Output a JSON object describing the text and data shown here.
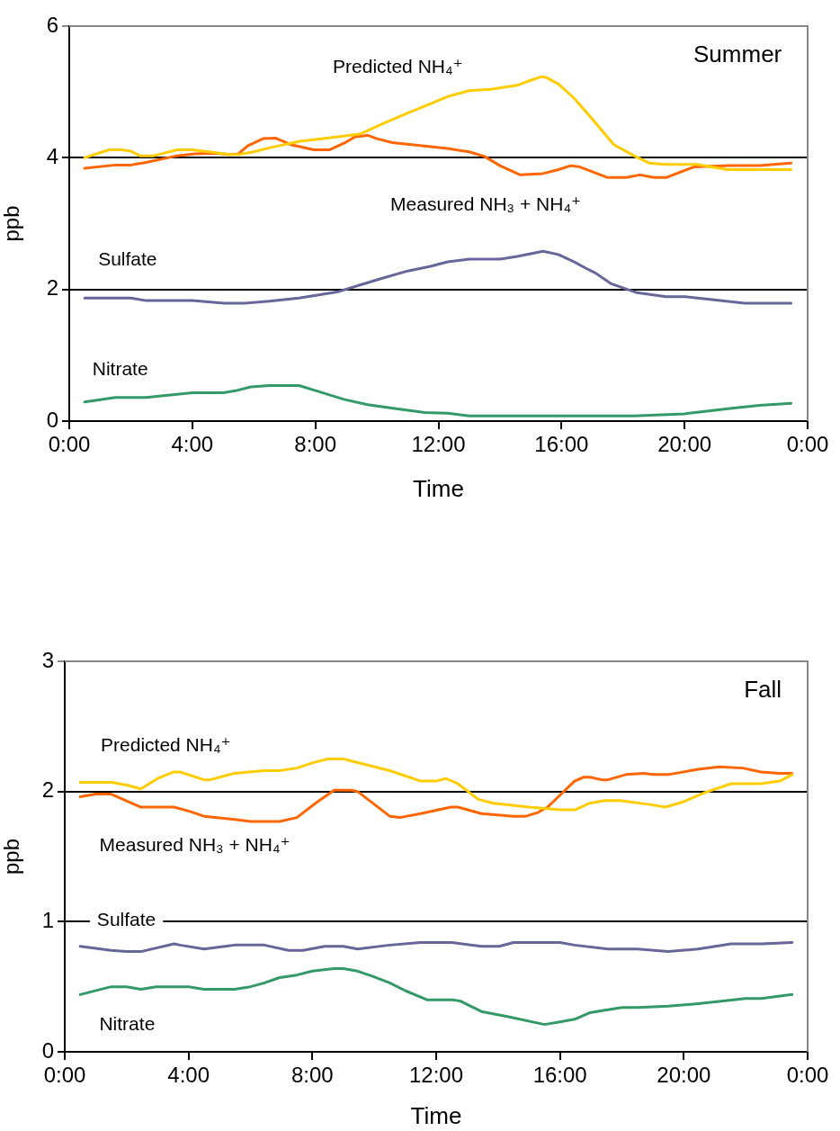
{
  "chart_data": [
    {
      "type": "line",
      "title": "Summer",
      "xlabel": "Time",
      "ylabel": "ppb",
      "xlim": [
        0,
        24
      ],
      "ylim": [
        0,
        6
      ],
      "xticks": [
        {
          "value": 0,
          "label": "0:00"
        },
        {
          "value": 4,
          "label": "4:00"
        },
        {
          "value": 8,
          "label": "8:00"
        },
        {
          "value": 12,
          "label": "12:00"
        },
        {
          "value": 16,
          "label": "16:00"
        },
        {
          "value": 20,
          "label": "20:00"
        },
        {
          "value": 24,
          "label": "0:00"
        }
      ],
      "yticks": [
        0,
        2,
        4,
        6
      ],
      "grid": "y",
      "legend": false,
      "series": [
        {
          "name": "Predicted NH₄⁺",
          "color": "#ffcc00",
          "x": [
            0.5,
            0.95,
            1.3,
            1.7,
            2.0,
            2.3,
            2.75,
            3.5,
            4.0,
            4.55,
            5.2,
            5.5,
            6.0,
            6.5,
            7.5,
            8.25,
            9.45,
            10.2,
            11.0,
            11.74,
            12.3,
            13.0,
            13.7,
            14.56,
            14.95,
            15.34,
            15.5,
            15.9,
            16.4,
            17.0,
            17.7,
            18.4,
            18.85,
            19.4,
            20.4,
            21.4,
            23.46
          ],
          "values": [
            4.0,
            4.07,
            4.12,
            4.12,
            4.1,
            4.03,
            4.03,
            4.12,
            4.12,
            4.09,
            4.05,
            4.05,
            4.09,
            4.15,
            4.25,
            4.29,
            4.36,
            4.52,
            4.68,
            4.82,
            4.93,
            5.02,
            5.04,
            5.1,
            5.17,
            5.23,
            5.22,
            5.12,
            4.91,
            4.59,
            4.2,
            4.02,
            3.92,
            3.9,
            3.9,
            3.82,
            3.82
          ]
        },
        {
          "name": "Measured NH₃ + NH₄⁺",
          "color": "#ff6600",
          "x": [
            0.5,
            1.5,
            2.0,
            2.5,
            3.5,
            4.07,
            4.75,
            5.2,
            5.5,
            5.8,
            6.3,
            6.7,
            7.2,
            7.95,
            8.45,
            8.93,
            9.3,
            9.7,
            10.0,
            10.5,
            12.3,
            13.0,
            13.5,
            14.0,
            14.66,
            15.4,
            15.9,
            16.3,
            16.6,
            17.5,
            18.1,
            18.55,
            19.0,
            19.4,
            20.3,
            21.47,
            22.44,
            23.46
          ],
          "values": [
            3.84,
            3.89,
            3.89,
            3.93,
            4.03,
            4.06,
            4.07,
            4.05,
            4.06,
            4.18,
            4.29,
            4.3,
            4.2,
            4.12,
            4.12,
            4.22,
            4.32,
            4.34,
            4.29,
            4.23,
            4.14,
            4.09,
            4.02,
            3.88,
            3.74,
            3.76,
            3.82,
            3.88,
            3.86,
            3.7,
            3.7,
            3.74,
            3.7,
            3.7,
            3.86,
            3.88,
            3.88,
            3.92
          ]
        },
        {
          "name": "Sulfate",
          "color": "#666699",
          "x": [
            0.5,
            2.0,
            2.5,
            4.0,
            5.04,
            5.7,
            6.5,
            7.47,
            8.7,
            9.4,
            10.1,
            11.0,
            11.74,
            12.3,
            13.0,
            14.0,
            14.56,
            15.4,
            15.9,
            16.4,
            16.8,
            17.1,
            17.6,
            18.45,
            19.4,
            20.0,
            21.96,
            23.46
          ],
          "values": [
            1.87,
            1.87,
            1.83,
            1.83,
            1.79,
            1.79,
            1.82,
            1.87,
            1.96,
            2.06,
            2.16,
            2.28,
            2.35,
            2.42,
            2.46,
            2.46,
            2.5,
            2.58,
            2.53,
            2.42,
            2.32,
            2.25,
            2.09,
            1.95,
            1.89,
            1.89,
            1.79,
            1.79
          ]
        },
        {
          "name": "Nitrate",
          "color": "#339966",
          "x": [
            0.5,
            1.5,
            2.5,
            4.0,
            5.0,
            5.4,
            5.9,
            6.5,
            7.47,
            7.96,
            8.93,
            9.7,
            10.58,
            11.56,
            12.3,
            13.0,
            18.35,
            20.0,
            21.47,
            22.44,
            23.46
          ],
          "values": [
            0.29,
            0.36,
            0.36,
            0.43,
            0.43,
            0.46,
            0.52,
            0.54,
            0.54,
            0.47,
            0.33,
            0.25,
            0.19,
            0.13,
            0.12,
            0.08,
            0.08,
            0.11,
            0.19,
            0.24,
            0.27
          ]
        }
      ]
    },
    {
      "type": "line",
      "title": "Fall",
      "xlabel": "Time",
      "ylabel": "ppb",
      "xlim": [
        0,
        24
      ],
      "ylim": [
        0,
        3
      ],
      "xticks": [
        {
          "value": 0,
          "label": "0:00"
        },
        {
          "value": 4,
          "label": "4:00"
        },
        {
          "value": 8,
          "label": "8:00"
        },
        {
          "value": 12,
          "label": "12:00"
        },
        {
          "value": 16,
          "label": "16:00"
        },
        {
          "value": 20,
          "label": "20:00"
        },
        {
          "value": 24,
          "label": "0:00"
        }
      ],
      "yticks": [
        0,
        1,
        2,
        3
      ],
      "grid": "y",
      "legend": false,
      "series": [
        {
          "name": "Predicted NH₄⁺",
          "color": "#ffcc00",
          "x": [
            0.5,
            1.5,
            2.0,
            2.46,
            3.0,
            3.53,
            3.73,
            4.5,
            4.7,
            5.48,
            6.45,
            6.94,
            7.5,
            8.0,
            8.5,
            9.0,
            10.5,
            11.5,
            12.0,
            12.3,
            12.7,
            13.36,
            13.85,
            15.0,
            16.0,
            16.5,
            16.96,
            17.45,
            17.93,
            18.9,
            19.4,
            19.98,
            20.66,
            21.53,
            22.5,
            23.1,
            23.5
          ],
          "values": [
            2.07,
            2.07,
            2.05,
            2.02,
            2.1,
            2.15,
            2.15,
            2.09,
            2.09,
            2.14,
            2.16,
            2.16,
            2.18,
            2.22,
            2.25,
            2.25,
            2.16,
            2.08,
            2.08,
            2.1,
            2.06,
            1.94,
            1.91,
            1.88,
            1.86,
            1.86,
            1.91,
            1.93,
            1.93,
            1.9,
            1.88,
            1.92,
            1.99,
            2.06,
            2.06,
            2.08,
            2.13
          ]
        },
        {
          "name": "Measured NH₃ + NH₄⁺",
          "color": "#ff6600",
          "x": [
            0.5,
            1.0,
            1.5,
            1.88,
            2.46,
            3.53,
            4.0,
            4.5,
            5.67,
            6.0,
            6.94,
            7.5,
            8.1,
            8.7,
            9.27,
            9.46,
            10.5,
            10.83,
            11.5,
            12.48,
            12.7,
            13.46,
            14.5,
            14.9,
            15.3,
            15.6,
            16.47,
            16.77,
            16.96,
            17.35,
            17.55,
            18.13,
            18.7,
            19.0,
            19.5,
            20.46,
            21.15,
            21.9,
            22.5,
            23.1,
            23.5
          ],
          "values": [
            1.96,
            1.98,
            1.98,
            1.94,
            1.88,
            1.88,
            1.85,
            1.81,
            1.78,
            1.77,
            1.77,
            1.8,
            1.91,
            2.01,
            2.01,
            2.0,
            1.81,
            1.8,
            1.83,
            1.88,
            1.88,
            1.83,
            1.81,
            1.81,
            1.84,
            1.88,
            2.08,
            2.11,
            2.11,
            2.09,
            2.09,
            2.13,
            2.14,
            2.13,
            2.13,
            2.17,
            2.19,
            2.18,
            2.15,
            2.14,
            2.14
          ]
        },
        {
          "name": "Sulfate",
          "color": "#666699",
          "x": [
            0.5,
            1.5,
            2.0,
            2.46,
            3.53,
            3.73,
            4.5,
            5.48,
            6.45,
            7.23,
            7.7,
            8.4,
            9.0,
            9.46,
            10.5,
            11.5,
            12.5,
            13.46,
            14.04,
            14.5,
            16.0,
            16.47,
            17.55,
            18.5,
            19.5,
            20.46,
            21.53,
            22.5,
            23.5
          ],
          "values": [
            0.81,
            0.78,
            0.77,
            0.77,
            0.83,
            0.82,
            0.79,
            0.82,
            0.82,
            0.78,
            0.78,
            0.81,
            0.81,
            0.79,
            0.82,
            0.84,
            0.84,
            0.81,
            0.81,
            0.84,
            0.84,
            0.82,
            0.79,
            0.79,
            0.77,
            0.79,
            0.83,
            0.83,
            0.84
          ]
        },
        {
          "name": "Nitrate",
          "color": "#339966",
          "x": [
            0.5,
            1.5,
            2.0,
            2.46,
            2.95,
            4.0,
            4.5,
            5.48,
            6.0,
            6.45,
            6.94,
            7.5,
            8.0,
            8.7,
            9.0,
            9.46,
            9.95,
            10.5,
            11.0,
            11.7,
            12.5,
            12.78,
            13.46,
            14.33,
            15.5,
            16.0,
            16.47,
            16.96,
            17.45,
            18.0,
            18.5,
            19.5,
            20.46,
            22.0,
            22.5,
            23.5
          ],
          "values": [
            0.44,
            0.5,
            0.5,
            0.48,
            0.5,
            0.5,
            0.48,
            0.48,
            0.5,
            0.53,
            0.57,
            0.59,
            0.62,
            0.64,
            0.64,
            0.62,
            0.58,
            0.53,
            0.47,
            0.4,
            0.4,
            0.39,
            0.31,
            0.27,
            0.21,
            0.23,
            0.25,
            0.3,
            0.32,
            0.34,
            0.34,
            0.35,
            0.37,
            0.41,
            0.41,
            0.44
          ]
        }
      ]
    }
  ]
}
